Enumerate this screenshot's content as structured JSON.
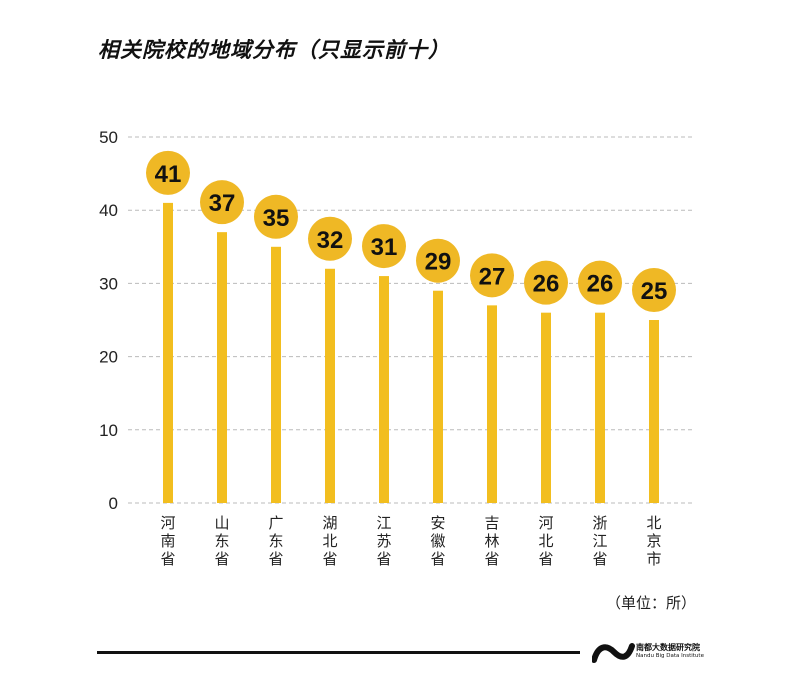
{
  "chart_data": {
    "type": "bar",
    "title": "相关院校的地域分布（只显示前十）",
    "categories": [
      "河南省",
      "山东省",
      "广东省",
      "湖北省",
      "江苏省",
      "安徽省",
      "吉林省",
      "河北省",
      "浙江省",
      "北京市"
    ],
    "values": [
      41,
      37,
      35,
      32,
      31,
      29,
      27,
      26,
      26,
      25
    ],
    "ylim": [
      0,
      50
    ],
    "yticks": [
      0,
      10,
      20,
      30,
      40,
      50
    ],
    "grid": true,
    "unit_note": "（单位：所）",
    "colors": {
      "bar": "#F2BE1F",
      "marker": "#EFB825",
      "text": "#111111"
    }
  },
  "footer": {
    "logo_cn": "南都大数据研究院",
    "logo_en": "Nandu Big Data Institute"
  }
}
